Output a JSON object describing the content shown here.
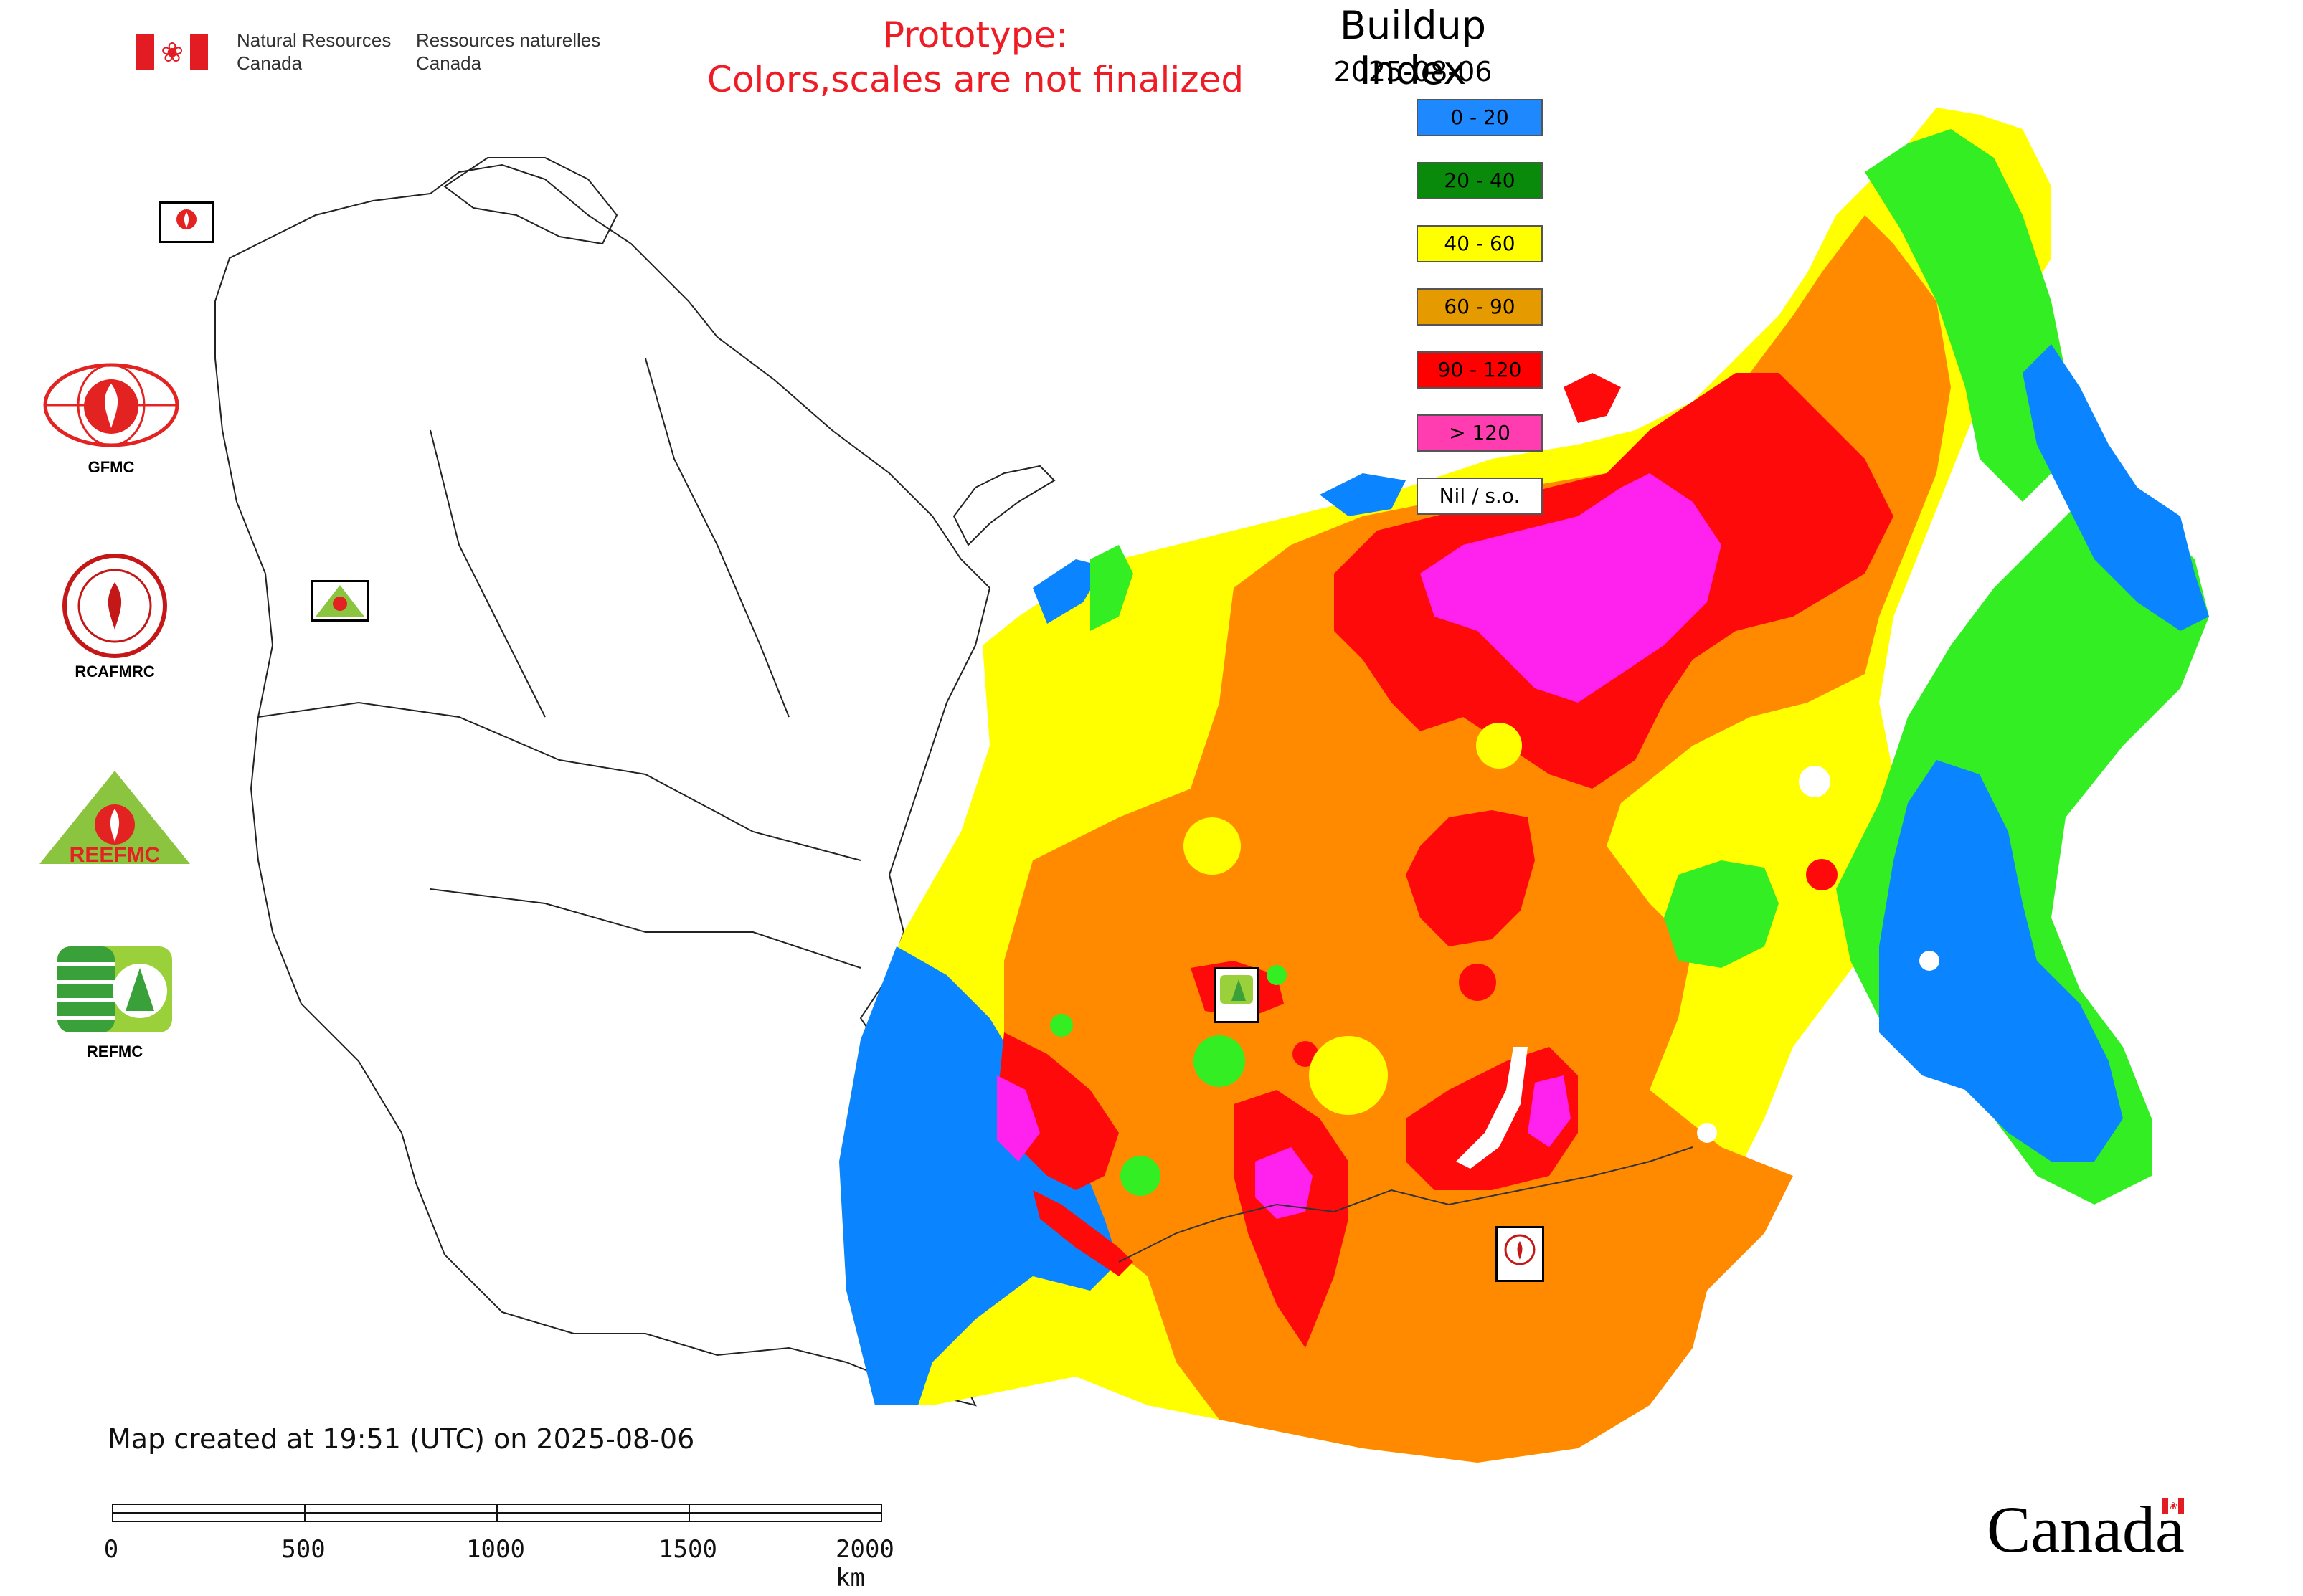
{
  "header": {
    "org_en": [
      "Natural Resources",
      "Canada"
    ],
    "org_fr": [
      "Ressources naturelles",
      "Canada"
    ],
    "prototype_line1": "Prototype:",
    "prototype_line2": "Colors,scales are not finalized"
  },
  "map": {
    "title": "Buildup Index",
    "date": "2025-08-06",
    "created_note": "Map created at 19:51 (UTC) on 2025-08-06",
    "legend": [
      {
        "label": "0 - 20",
        "color": "#1e88ff"
      },
      {
        "label": "20 - 40",
        "color": "#0a8a0a"
      },
      {
        "label": "40 - 60",
        "color": "#ffff00"
      },
      {
        "label": "60 - 90",
        "color": "#e59a00"
      },
      {
        "label": "90 - 120",
        "color": "#ff0000"
      },
      {
        "label": "> 120",
        "color": "#ff3db0"
      },
      {
        "label": "Nil / s.o.",
        "color": "#ffffff"
      }
    ],
    "data_colors": {
      "blue": "#0a84ff",
      "green": "#33ee22",
      "yellow": "#ffff00",
      "orange": "#ff8a00",
      "red": "#ff0a0a",
      "magenta": "#ff22ee"
    },
    "station_markers": [
      "GFMC",
      "REEFMC",
      "REFMC",
      "RCAFMRC"
    ]
  },
  "logos": [
    {
      "name": "GFMC",
      "label": "GFMC",
      "color": "#e32222"
    },
    {
      "name": "RCAFMRC",
      "label": "RCAFMRC",
      "color": "#c41818"
    },
    {
      "name": "REEFMC",
      "label": "",
      "color": "#8bc53f"
    },
    {
      "name": "REFMC",
      "label": "REFMC",
      "color": "#3aa13a"
    }
  ],
  "logo_texts": {
    "reefmc_mark": "REEFMC"
  },
  "scale": {
    "labels": [
      "0",
      "500",
      "1000",
      "1500",
      "2000 km"
    ]
  },
  "footer": {
    "wordmark": "Canada"
  }
}
